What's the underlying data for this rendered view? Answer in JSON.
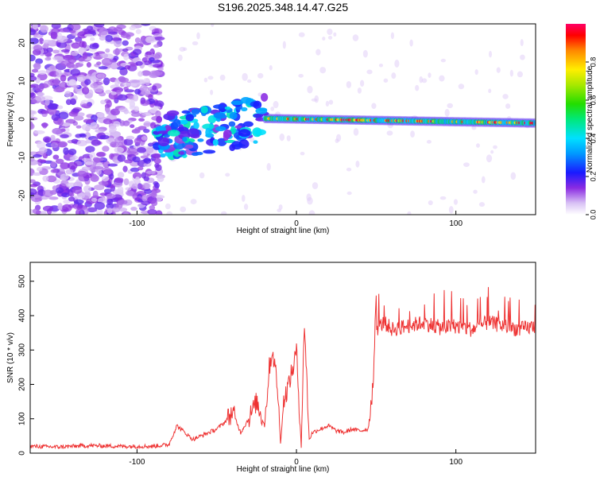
{
  "title": "S196.2025.348.14.47.G25",
  "chart_data": [
    {
      "type": "heatmap",
      "xlabel": "Height of straight line (km)",
      "ylabel": "Frequency (Hz)",
      "xlim": [
        -167,
        150
      ],
      "ylim": [
        -25,
        25
      ],
      "xticks": [
        -100,
        0,
        100
      ],
      "yticks": [
        20,
        10,
        0,
        -10,
        -20
      ],
      "xticklabels": [
        "-100",
        "0",
        "100"
      ],
      "yticklabels": [
        "20",
        "10",
        "0",
        "-10",
        "-20"
      ],
      "regions": [
        {
          "description": "noise",
          "x": [
            -167,
            -85
          ],
          "freq": [
            -25,
            25
          ],
          "amplitude": 0.05
        },
        {
          "description": "scattered blobs",
          "x": [
            -88,
            -20
          ],
          "freq": [
            -10,
            7
          ],
          "amplitude": 0.35
        },
        {
          "description": "narrow band",
          "x": [
            -20,
            150
          ],
          "freq": [
            -2,
            1
          ],
          "amplitude": 0.8
        }
      ],
      "colorbar": {
        "label": "Normalized spectral amplitude",
        "range": [
          0,
          1
        ],
        "ticks": [
          0.0,
          0.2,
          0.4,
          0.6,
          0.8
        ],
        "ticklabels": [
          "0.0",
          "0.2",
          "0.4",
          "0.6",
          "0.8"
        ]
      }
    },
    {
      "type": "line",
      "xlabel": "Height of straight line (km)",
      "ylabel": "SNR (10 * v/v)",
      "xlim": [
        -167,
        150
      ],
      "ylim": [
        0,
        555
      ],
      "xticks": [
        -100,
        0,
        100
      ],
      "yticks": [
        0,
        100,
        200,
        300,
        400,
        500
      ],
      "xticklabels": [
        "-100",
        "0",
        "100"
      ],
      "yticklabels": [
        "0",
        "100",
        "200",
        "300",
        "400",
        "500"
      ],
      "series": [
        {
          "name": "SNR",
          "color": "#ee3333",
          "x": [
            -167,
            -150,
            -130,
            -110,
            -90,
            -80,
            -75,
            -70,
            -65,
            -60,
            -55,
            -50,
            -45,
            -40,
            -35,
            -30,
            -25,
            -20,
            -17,
            -15,
            -12,
            -10,
            -8,
            -5,
            -2,
            0,
            3,
            5,
            8,
            10,
            15,
            20,
            25,
            30,
            35,
            40,
            45,
            48,
            50,
            55,
            60,
            70,
            80,
            90,
            100,
            110,
            120,
            130,
            140,
            150
          ],
          "values": [
            20,
            18,
            22,
            20,
            20,
            25,
            80,
            60,
            40,
            50,
            60,
            70,
            90,
            120,
            60,
            100,
            150,
            80,
            250,
            300,
            200,
            30,
            150,
            200,
            250,
            300,
            20,
            380,
            40,
            60,
            70,
            80,
            65,
            60,
            70,
            65,
            70,
            200,
            360,
            380,
            360,
            370,
            380,
            365,
            370,
            360,
            380,
            370,
            360,
            370
          ]
        }
      ]
    }
  ]
}
